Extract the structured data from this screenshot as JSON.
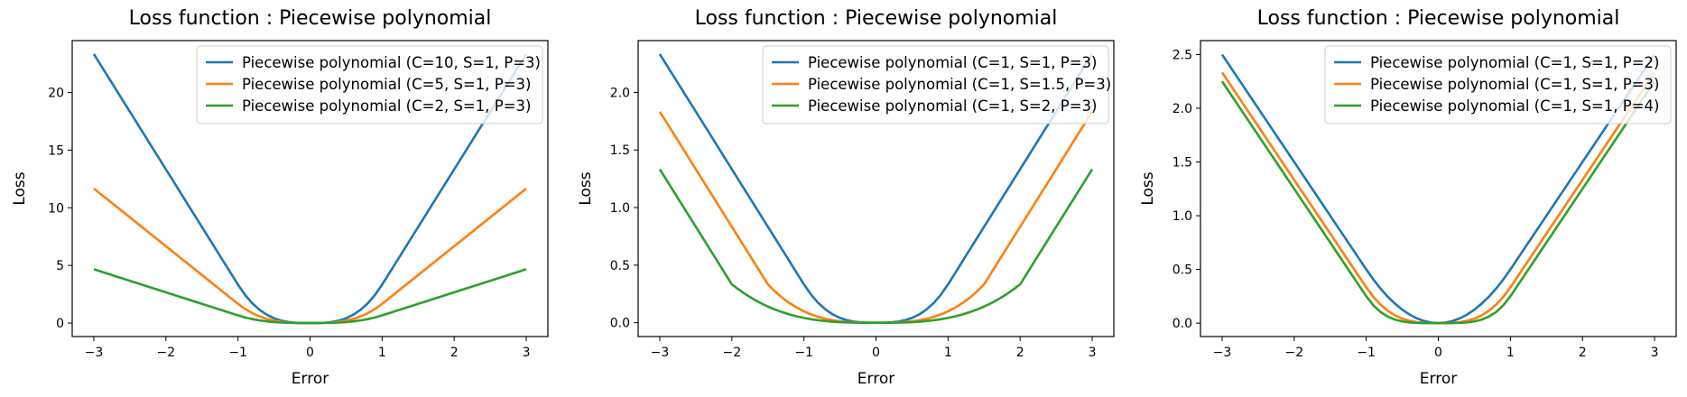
{
  "chart_data": [
    {
      "type": "line",
      "title": "Loss function : Piecewise polynomial",
      "xlabel": "Error",
      "ylabel": "Loss",
      "xlim": [
        -3.3,
        3.3
      ],
      "ylim": [
        -1.17,
        24.5
      ],
      "xticks": [
        -3,
        -2,
        -1,
        0,
        1,
        2,
        3
      ],
      "yticks": [
        0,
        5,
        10,
        15,
        20
      ],
      "grid": false,
      "legend_position": "top-right",
      "series": [
        {
          "name": "Piecewise polynomial (C=10, S=1, P=3)",
          "color": "#1f77b4",
          "C": 10,
          "S": 1,
          "P": 3
        },
        {
          "name": "Piecewise polynomial (C=5, S=1, P=3)",
          "color": "#ff7f0e",
          "C": 5,
          "S": 1,
          "P": 3
        },
        {
          "name": "Piecewise polynomial (C=2, S=1, P=3)",
          "color": "#2ca02c",
          "C": 2,
          "S": 1,
          "P": 3
        }
      ]
    },
    {
      "type": "line",
      "title": "Loss function : Piecewise polynomial",
      "xlabel": "Error",
      "ylabel": "Loss",
      "xlim": [
        -3.3,
        3.3
      ],
      "ylim": [
        -0.12,
        2.45
      ],
      "xticks": [
        -3,
        -2,
        -1,
        0,
        1,
        2,
        3
      ],
      "yticks": [
        0.0,
        0.5,
        1.0,
        1.5,
        2.0
      ],
      "grid": false,
      "legend_position": "top-right",
      "series": [
        {
          "name": "Piecewise polynomial (C=1, S=1, P=3)",
          "color": "#1f77b4",
          "C": 1,
          "S": 1,
          "P": 3
        },
        {
          "name": "Piecewise polynomial (C=1, S=1.5, P=3)",
          "color": "#ff7f0e",
          "C": 1,
          "S": 1.5,
          "P": 3
        },
        {
          "name": "Piecewise polynomial (C=1, S=2, P=3)",
          "color": "#2ca02c",
          "C": 1,
          "S": 2,
          "P": 3
        }
      ]
    },
    {
      "type": "line",
      "title": "Loss function : Piecewise polynomial",
      "xlabel": "Error",
      "ylabel": "Loss",
      "xlim": [
        -3.3,
        3.3
      ],
      "ylim": [
        -0.125,
        2.63
      ],
      "xticks": [
        -3,
        -2,
        -1,
        0,
        1,
        2,
        3
      ],
      "yticks": [
        0.0,
        0.5,
        1.0,
        1.5,
        2.0,
        2.5
      ],
      "grid": false,
      "legend_position": "top-right",
      "series": [
        {
          "name": "Piecewise polynomial (C=1, S=1, P=2)",
          "color": "#1f77b4",
          "C": 1,
          "S": 1,
          "P": 2
        },
        {
          "name": "Piecewise polynomial (C=1, S=1, P=3)",
          "color": "#ff7f0e",
          "C": 1,
          "S": 1,
          "P": 3
        },
        {
          "name": "Piecewise polynomial (C=1, S=1, P=4)",
          "color": "#2ca02c",
          "C": 1,
          "S": 1,
          "P": 4
        }
      ]
    }
  ]
}
